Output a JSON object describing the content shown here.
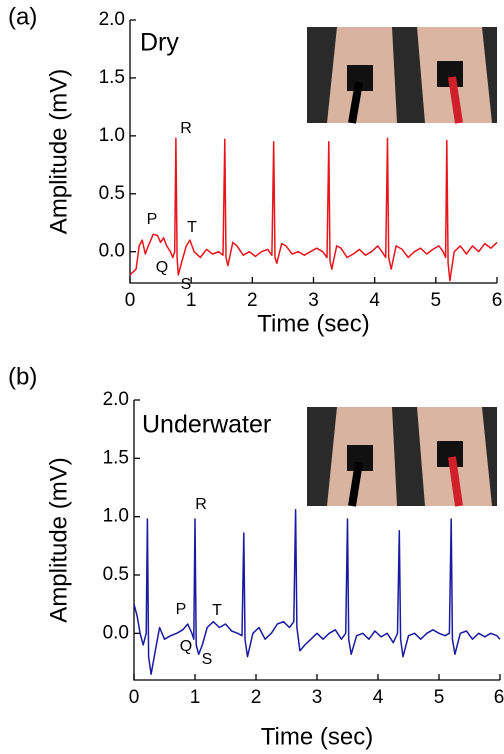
{
  "chart_data": [
    {
      "type": "line",
      "panel_label": "(a)",
      "title": "Dry",
      "annotations": [
        "P",
        "Q",
        "R",
        "S",
        "T"
      ],
      "x_label": "Time (sec)",
      "y_label": "Amplitude (mV)",
      "color": "#e8141c",
      "xlim": [
        0,
        6
      ],
      "ylim": [
        -0.27,
        2.0
      ],
      "xticks": [
        0,
        1,
        2,
        3,
        4,
        5,
        6
      ],
      "yticks": [
        {
          "value": 0,
          "label": "0.0"
        },
        {
          "value": 0.5,
          "label": "0.5"
        },
        {
          "value": 1,
          "label": "1.0"
        },
        {
          "value": 1.5,
          "label": "1.5"
        },
        {
          "value": 2,
          "label": "2.0"
        }
      ],
      "x": [
        0,
        0.1,
        0.15,
        0.2,
        0.25,
        0.3,
        0.38,
        0.45,
        0.5,
        0.55,
        0.6,
        0.66,
        0.7,
        0.73,
        0.75,
        0.77,
        0.79,
        0.85,
        0.92,
        0.98,
        1.05,
        1.15,
        1.25,
        1.35,
        1.45,
        1.52,
        1.55,
        1.57,
        1.6,
        1.68,
        1.75,
        1.85,
        1.95,
        2.05,
        2.15,
        2.25,
        2.32,
        2.35,
        2.37,
        2.4,
        2.48,
        2.55,
        2.65,
        2.75,
        2.85,
        2.95,
        3.05,
        3.15,
        3.22,
        3.25,
        3.27,
        3.3,
        3.38,
        3.45,
        3.55,
        3.65,
        3.75,
        3.85,
        3.95,
        4.05,
        4.12,
        4.18,
        4.21,
        4.23,
        4.27,
        4.35,
        4.45,
        4.55,
        4.65,
        4.75,
        4.85,
        4.95,
        5.05,
        5.12,
        5.16,
        5.18,
        5.2,
        5.23,
        5.3,
        5.4,
        5.5,
        5.6,
        5.7,
        5.8,
        5.9,
        6.0
      ],
      "values": [
        -0.2,
        -0.15,
        0.05,
        0.1,
        -0.02,
        0.05,
        0.15,
        0.14,
        0.08,
        0.12,
        0.05,
        0.0,
        -0.05,
        0.0,
        0.98,
        -0.05,
        -0.2,
        -0.08,
        0.05,
        0.1,
        0.0,
        -0.05,
        0.02,
        -0.02,
        0.0,
        -0.03,
        0.97,
        -0.05,
        -0.12,
        0.08,
        0.05,
        -0.03,
        0.0,
        -0.04,
        0.0,
        0.02,
        -0.03,
        0.95,
        -0.05,
        -0.1,
        0.07,
        0.05,
        -0.02,
        0.0,
        -0.03,
        0.0,
        0.03,
        0.0,
        -0.05,
        0.95,
        -0.08,
        -0.15,
        0.05,
        0.03,
        -0.05,
        -0.02,
        0.02,
        -0.03,
        0.0,
        0.05,
        0.0,
        -0.05,
        0.98,
        -0.05,
        -0.15,
        0.05,
        0.02,
        -0.05,
        0.0,
        0.03,
        -0.02,
        0.02,
        0.05,
        0.0,
        -0.05,
        0.96,
        -0.1,
        -0.25,
        0.0,
        0.05,
        -0.02,
        0.05,
        0.0,
        0.07,
        0.03,
        0.08
      ]
    },
    {
      "type": "line",
      "panel_label": "(b)",
      "title": "Underwater",
      "annotations": [
        "P",
        "Q",
        "R",
        "S",
        "T"
      ],
      "x_label": "Time (sec)",
      "y_label": "Amplitude (mV)",
      "color": "#1a1aa0",
      "xlim": [
        0,
        6
      ],
      "ylim": [
        -0.4,
        2.0
      ],
      "xticks": [
        0,
        1,
        2,
        3,
        4,
        5,
        6
      ],
      "yticks": [
        {
          "value": 0,
          "label": "0.0"
        },
        {
          "value": 0.5,
          "label": "0.5"
        },
        {
          "value": 1,
          "label": "1.0"
        },
        {
          "value": 1.5,
          "label": "1.5"
        },
        {
          "value": 2,
          "label": "2.0"
        }
      ],
      "x": [
        0,
        0.05,
        0.1,
        0.15,
        0.2,
        0.22,
        0.24,
        0.28,
        0.35,
        0.42,
        0.5,
        0.6,
        0.7,
        0.8,
        0.88,
        0.95,
        0.98,
        1.0,
        1.02,
        1.06,
        1.12,
        1.2,
        1.3,
        1.4,
        1.5,
        1.6,
        1.7,
        1.77,
        1.8,
        1.82,
        1.86,
        1.95,
        2.05,
        2.15,
        2.25,
        2.35,
        2.45,
        2.55,
        2.62,
        2.65,
        2.67,
        2.72,
        2.8,
        2.9,
        3.0,
        3.1,
        3.2,
        3.3,
        3.4,
        3.47,
        3.5,
        3.52,
        3.56,
        3.65,
        3.75,
        3.85,
        3.95,
        4.05,
        4.15,
        4.25,
        4.32,
        4.35,
        4.37,
        4.41,
        4.5,
        4.6,
        4.7,
        4.8,
        4.9,
        5.0,
        5.1,
        5.17,
        5.2,
        5.22,
        5.26,
        5.35,
        5.45,
        5.55,
        5.65,
        5.75,
        5.85,
        5.95,
        6.0
      ],
      "values": [
        0.25,
        0.15,
        0.0,
        -0.1,
        0.0,
        0.98,
        -0.2,
        -0.35,
        -0.15,
        0.05,
        -0.05,
        -0.02,
        0.0,
        0.03,
        0.08,
        0.0,
        -0.05,
        0.98,
        -0.1,
        -0.18,
        -0.1,
        0.05,
        0.1,
        0.05,
        0.08,
        0.02,
        0.0,
        -0.02,
        0.86,
        -0.05,
        -0.2,
        0.0,
        0.05,
        -0.05,
        0.0,
        0.08,
        0.1,
        0.05,
        0.1,
        1.06,
        0.05,
        -0.15,
        -0.1,
        -0.05,
        0.0,
        -0.05,
        0.0,
        0.03,
        -0.05,
        0.0,
        0.98,
        -0.05,
        -0.18,
        -0.02,
        0.0,
        -0.05,
        0.02,
        -0.03,
        0.0,
        -0.08,
        0.0,
        0.88,
        -0.05,
        -0.2,
        -0.02,
        0.0,
        -0.05,
        0.0,
        0.03,
        0.0,
        -0.02,
        0.0,
        0.98,
        -0.05,
        -0.18,
        0.0,
        0.02,
        -0.05,
        0.0,
        -0.03,
        0.0,
        -0.02,
        -0.05
      ]
    }
  ]
}
